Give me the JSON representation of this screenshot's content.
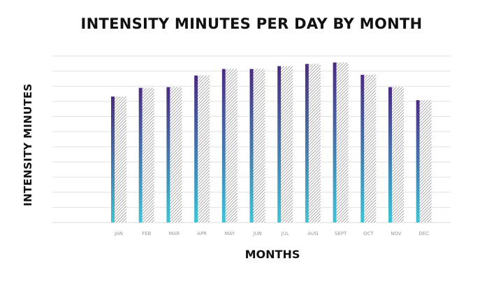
{
  "chart_data": {
    "type": "bar",
    "title": "INTENSITY MINUTES PER DAY BY MONTH",
    "xlabel": "MONTHS",
    "ylabel": "INTENSITY MINUTES",
    "categories": [
      "JAN",
      "FEB",
      "MAR",
      "APR",
      "MAY",
      "JUN",
      "JUL",
      "AUG",
      "SEPT",
      "OCT",
      "NOV",
      "DEC"
    ],
    "values": [
      8.7,
      9.3,
      9.35,
      10.15,
      10.6,
      10.6,
      10.8,
      10.95,
      11.05,
      10.2,
      9.35,
      8.45
    ],
    "ylim": [
      0,
      11.5
    ],
    "grid": true,
    "y_tick_labels_shown": false,
    "colors": {
      "bar_gradient_top": "#4b2a80",
      "bar_gradient_bottom": "#3ec3d6",
      "hatch": "#777777",
      "grid": "#e2e2e2"
    }
  }
}
